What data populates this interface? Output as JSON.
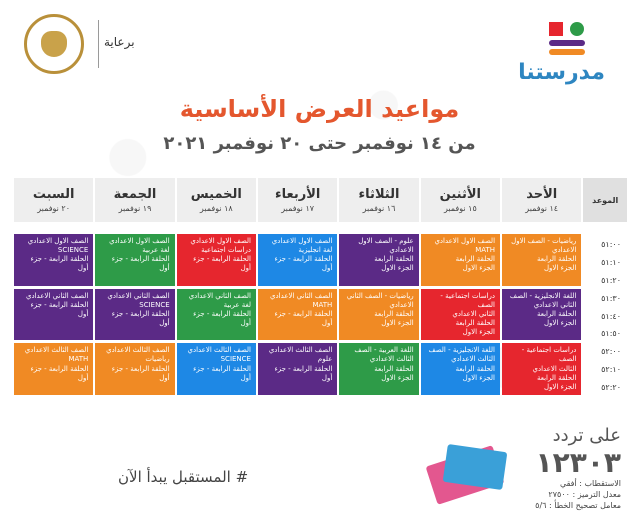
{
  "header": {
    "sponsor": "برعاية",
    "brand": "مدرستنا"
  },
  "title": "مواعيد العرض الأساسية",
  "subtitle": "من ١٤ نوفمبر حتى ٢٠ نوفمبر ٢٠٢١",
  "table": {
    "time_header": "الموعد",
    "days": [
      {
        "name": "الأحد",
        "date": "١٤ نوفمبر"
      },
      {
        "name": "الأثنين",
        "date": "١٥ نوفمبر"
      },
      {
        "name": "الثلاثاء",
        "date": "١٦ نوفمبر"
      },
      {
        "name": "الأربعاء",
        "date": "١٧ نوفمبر"
      },
      {
        "name": "الخميس",
        "date": "١٨ نوفمبر"
      },
      {
        "name": "الجمعة",
        "date": "١٩ نوفمبر"
      },
      {
        "name": "السبت",
        "date": "٢٠ نوفمبر"
      }
    ],
    "times": [
      "٥١:٠٠",
      "٥١:١٠",
      "٥١:٢٠",
      "٥١:٣٠",
      "٥١:٤٠",
      "٥١:٥٠",
      "٥٢:٠٠",
      "٥٢:١٠",
      "٥٢:٢٠"
    ],
    "rows": [
      [
        {
          "text": "رياضيات - الصف الاول الاعدادي\nالحلقة الرابعة\nالجزء الاول",
          "color": "orange"
        },
        {
          "text": "الصف الاول الاعدادي\nMATH\nالحلقة الرابعة\nالجزء الاول",
          "color": "orange"
        },
        {
          "text": "علوم - الصف الاول\nالاعدادي\nالحلقة الرابعة\nالجزء الاول",
          "color": "purple"
        },
        {
          "text": "الصف الاول الاعدادي\nلغة انجليزية\nالحلقة الرابعة - جزء أول",
          "color": "blue"
        },
        {
          "text": "الصف الاول الاعدادي\nدراسات اجتماعية\nالحلقة الرابعة - جزء أول",
          "color": "red"
        },
        {
          "text": "الصف الاول الاعدادي\nلغة عربية\nالحلقة الرابعة - جزء أول",
          "color": "green"
        },
        {
          "text": "الصف الاول الاعدادي\nSCIENCE\nالحلقة الرابعة - جزء أول",
          "color": "purple"
        }
      ],
      [
        {
          "text": "اللغة الانجليزية - الصف\nالثاني الاعدادي\nالحلقة الرابعة\nالجزء الاول",
          "color": "purple"
        },
        {
          "text": "دراسات اجتماعية - الصف\nالثاني الاعدادي\nالحلقة الرابعة\nالجزء الاول",
          "color": "red"
        },
        {
          "text": "رياضيات - الصف الثاني\nالاعدادي\nالحلقة الرابعة\nالجزء الاول",
          "color": "orange"
        },
        {
          "text": "الصف الثاني الاعدادي\nMATH\nالحلقة الرابعة - جزء أول",
          "color": "orange"
        },
        {
          "text": "الصف الثاني الاعدادي\nلغة عربية\nالحلقة الرابعة - جزء أول",
          "color": "green"
        },
        {
          "text": "الصف الثاني الاعدادي\nSCIENCE\nالحلقة الرابعة - جزء أول",
          "color": "purple"
        },
        {
          "text": "الصف الثاني الاعدادي\nالحلقة الرابعة - جزء أول",
          "color": "purple"
        }
      ],
      [
        {
          "text": "دراسات اجتماعية - الصف\nالثالث الاعدادي\nالحلقة الرابعة\nالجزء الاول",
          "color": "red"
        },
        {
          "text": "اللغة الانجليزية - الصف\nالثالث الاعدادي\nالحلقة الرابعة\nالجزء الاول",
          "color": "blue"
        },
        {
          "text": "اللغة العربية - الصف\nالثالث الاعدادي\nالحلقة الرابعة\nالجزء الاول",
          "color": "green"
        },
        {
          "text": "الصف الثالث الاعدادي\nعلوم\nالحلقة الرابعة - جزء أول",
          "color": "purple"
        },
        {
          "text": "الصف الثالث الاعدادي\nSCIENCE\nالحلقة الرابعة - جزء أول",
          "color": "blue"
        },
        {
          "text": "الصف الثالث الاعدادي\nرياضيات\nالحلقة الرابعة - جزء أول",
          "color": "orange"
        },
        {
          "text": "الصف الثالث الاعدادي\nMATH\nالحلقة الرابعة - جزء أول",
          "color": "orange"
        }
      ]
    ]
  },
  "footer": {
    "hashtag": "# المستقبل يبدأ الآن",
    "on": "على تردد",
    "frequency": "١٢٣٠٣",
    "info": [
      "الاستقطاب : أفقي",
      "معدل الترميز : ٢٧٥٠٠",
      "معامل تصحيح الخطأ : ٥/٦"
    ]
  },
  "colors": {
    "purple": "#5b2a86",
    "orange": "#f08a24",
    "blue": "#1e88e5",
    "green": "#2e9b48",
    "red": "#e6262e",
    "title": "#e4572e"
  }
}
